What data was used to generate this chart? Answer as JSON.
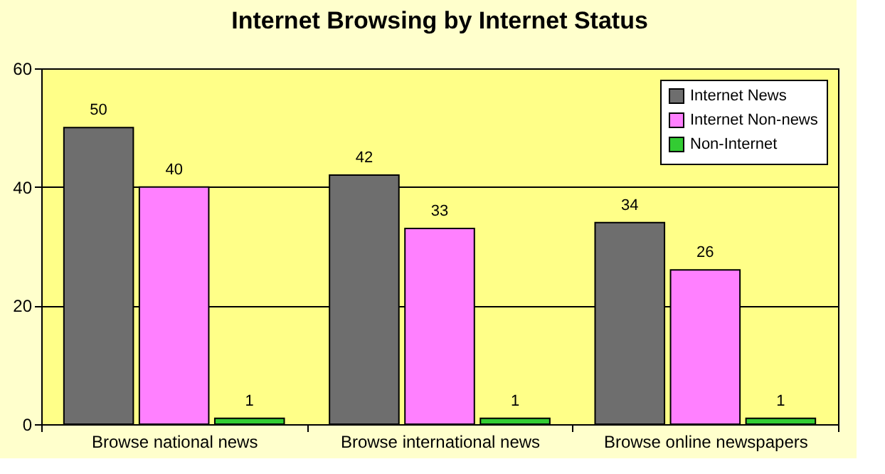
{
  "chart_data": {
    "type": "bar",
    "title": "Internet Browsing by Internet Status",
    "categories": [
      "Browse national news",
      "Browse international news",
      "Browse online newspapers"
    ],
    "series": [
      {
        "name": "Internet News",
        "color": "#6e6e6e",
        "values": [
          50,
          42,
          34
        ]
      },
      {
        "name": "Internet Non-news",
        "color": "#ff80ff",
        "values": [
          40,
          33,
          26
        ]
      },
      {
        "name": "Non-Internet",
        "color": "#33cc33",
        "values": [
          1,
          1,
          1
        ]
      }
    ],
    "ylim": [
      0,
      60
    ],
    "yticks": [
      0,
      20,
      40,
      60
    ],
    "grid": "y",
    "legend": "top right",
    "data_labels": true
  }
}
